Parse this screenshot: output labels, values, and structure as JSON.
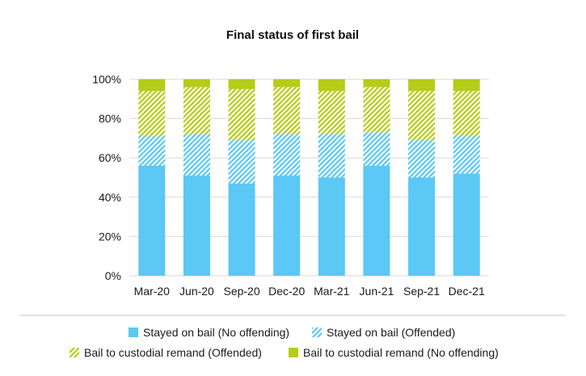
{
  "chart_data": {
    "type": "bar",
    "stacked": true,
    "title": "Final status of first bail",
    "xlabel": "",
    "ylabel": "",
    "ylim": [
      0,
      100
    ],
    "y_ticks": [
      "0%",
      "20%",
      "40%",
      "60%",
      "80%",
      "100%"
    ],
    "grid": true,
    "legend_position": "bottom",
    "categories": [
      "Mar-20",
      "Jun-20",
      "Sep-20",
      "Dec-20",
      "Mar-21",
      "Jun-21",
      "Sep-21",
      "Dec-21"
    ],
    "series": [
      {
        "name": "Stayed on bail (No offending)",
        "color": "#5bc8f5",
        "pattern": "solid",
        "values": [
          56,
          51,
          47,
          51,
          50,
          56,
          50,
          52
        ]
      },
      {
        "name": "Stayed on bail (Offended)",
        "color": "#5bc8f5",
        "pattern": "hatched",
        "values": [
          15,
          21,
          22,
          21,
          22,
          17,
          19,
          19
        ]
      },
      {
        "name": "Bail to custodial remand (Offended)",
        "color": "#b5cc18",
        "pattern": "hatched",
        "values": [
          23,
          24,
          26,
          24,
          22,
          23,
          25,
          23
        ]
      },
      {
        "name": "Bail to custodial remand (No offending)",
        "color": "#b5cc18",
        "pattern": "solid",
        "values": [
          6,
          4,
          5,
          4,
          6,
          4,
          6,
          6
        ]
      }
    ]
  }
}
